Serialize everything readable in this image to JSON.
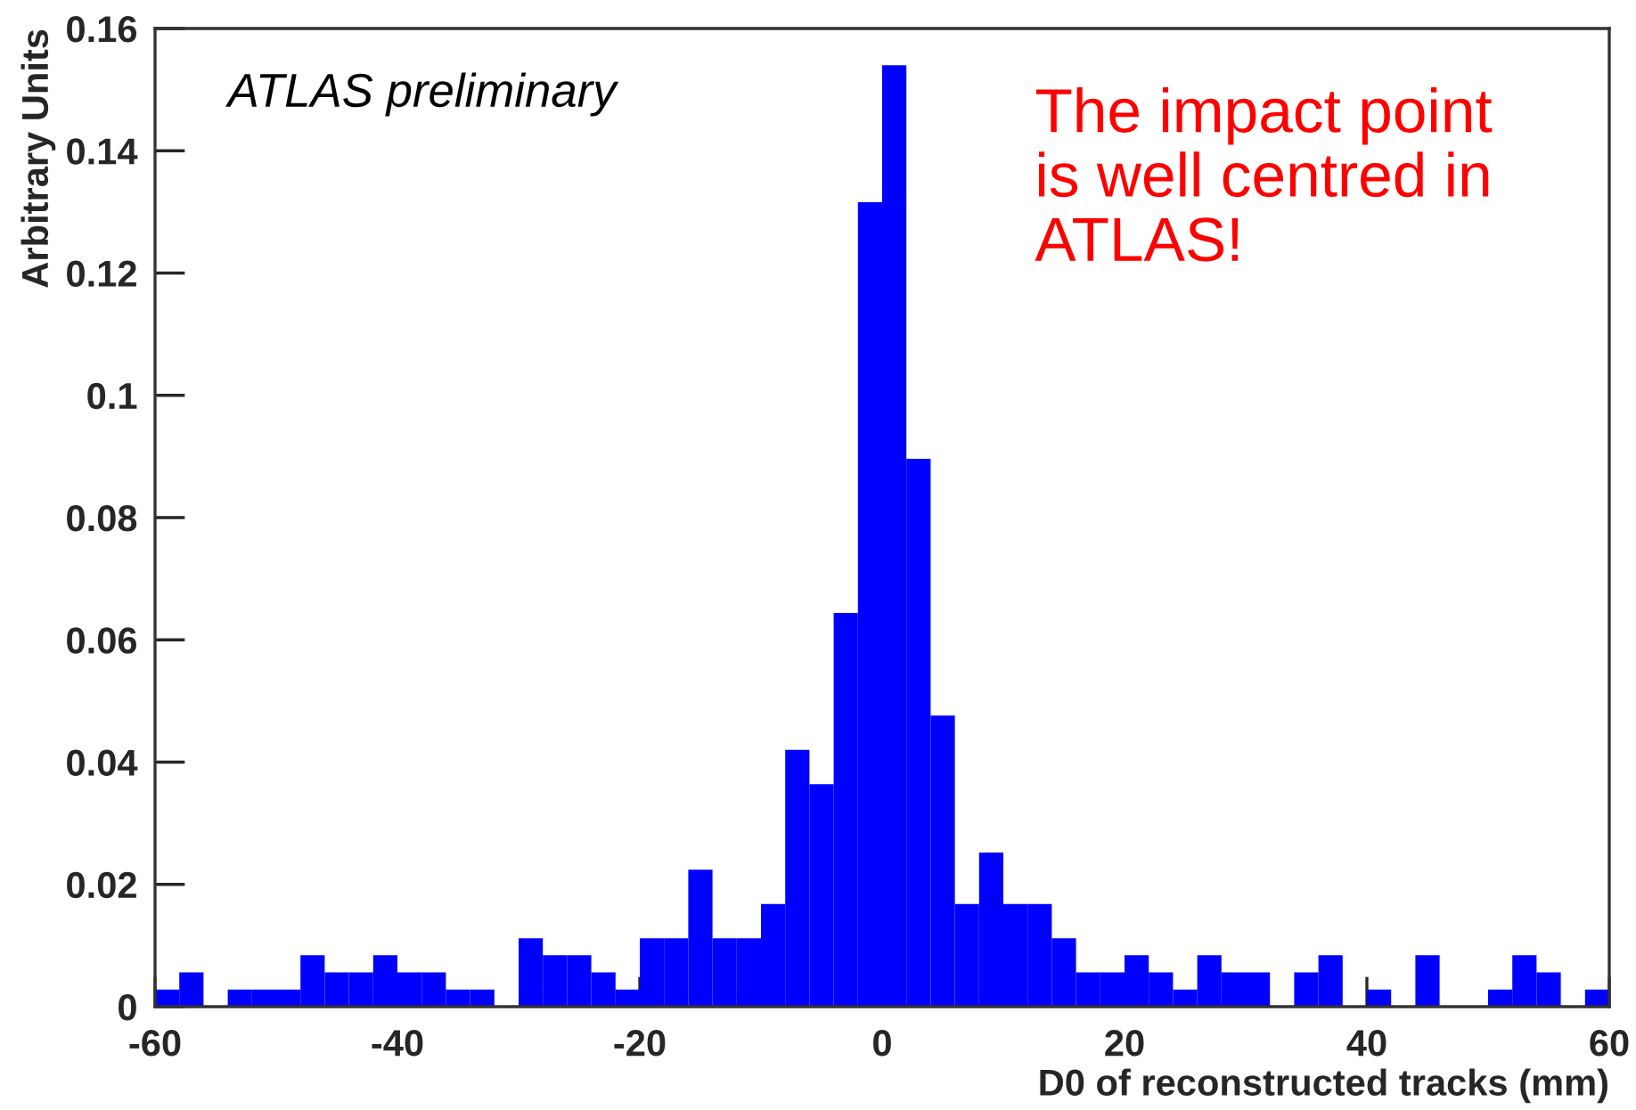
{
  "chart_data": {
    "type": "histogram",
    "xlabel": "D0 of reconstructed tracks (mm)",
    "ylabel": "Arbitrary Units",
    "annotations": [
      "ATLAS preliminary",
      "The impact point\nis well centred in\nATLAS!"
    ],
    "bins": [
      -60,
      -58,
      -56,
      -54,
      -52,
      -50,
      -48,
      -46,
      -44,
      -42,
      -40,
      -38,
      -36,
      -34,
      -32,
      -30,
      -28,
      -26,
      -24,
      -22,
      -20,
      -18,
      -16,
      -14,
      -12,
      -10,
      -8,
      -6,
      -4,
      -2,
      0,
      2,
      4,
      6,
      8,
      10,
      12,
      14,
      16,
      18,
      20,
      22,
      24,
      26,
      28,
      30,
      32,
      34,
      36,
      38,
      40,
      42,
      44,
      46,
      48,
      50,
      52,
      54,
      56,
      58,
      60
    ],
    "values": [
      0.0028,
      0.0056,
      0,
      0.0028,
      0.0028,
      0.0028,
      0.0084,
      0.0056,
      0.0056,
      0.0084,
      0.0056,
      0.0056,
      0.0028,
      0.0028,
      0,
      0.0112,
      0.0084,
      0.0084,
      0.0056,
      0.0028,
      0.0112,
      0.0112,
      0.0224,
      0.0112,
      0.0112,
      0.0168,
      0.042,
      0.0364,
      0.0644,
      0.1316,
      0.154,
      0.0896,
      0.0476,
      0.0168,
      0.0252,
      0.0168,
      0.0168,
      0.0112,
      0.0056,
      0.0056,
      0.0084,
      0.0056,
      0.0028,
      0.0084,
      0.0056,
      0.0056,
      0,
      0.0056,
      0.0084,
      0,
      0.0028,
      0,
      0.0084,
      0,
      0,
      0.0028,
      0.0084,
      0.0056,
      0,
      0.0028
    ],
    "color": "#0000ff",
    "xlim": [
      -60,
      60
    ],
    "xticks": [
      -60,
      -40,
      -20,
      0,
      20,
      40,
      60
    ],
    "ylim": [
      0,
      0.16
    ],
    "yticks": [
      0,
      0.02,
      0.04,
      0.06,
      0.08,
      0.1,
      0.12,
      0.14,
      0.16
    ],
    "grid": false
  }
}
